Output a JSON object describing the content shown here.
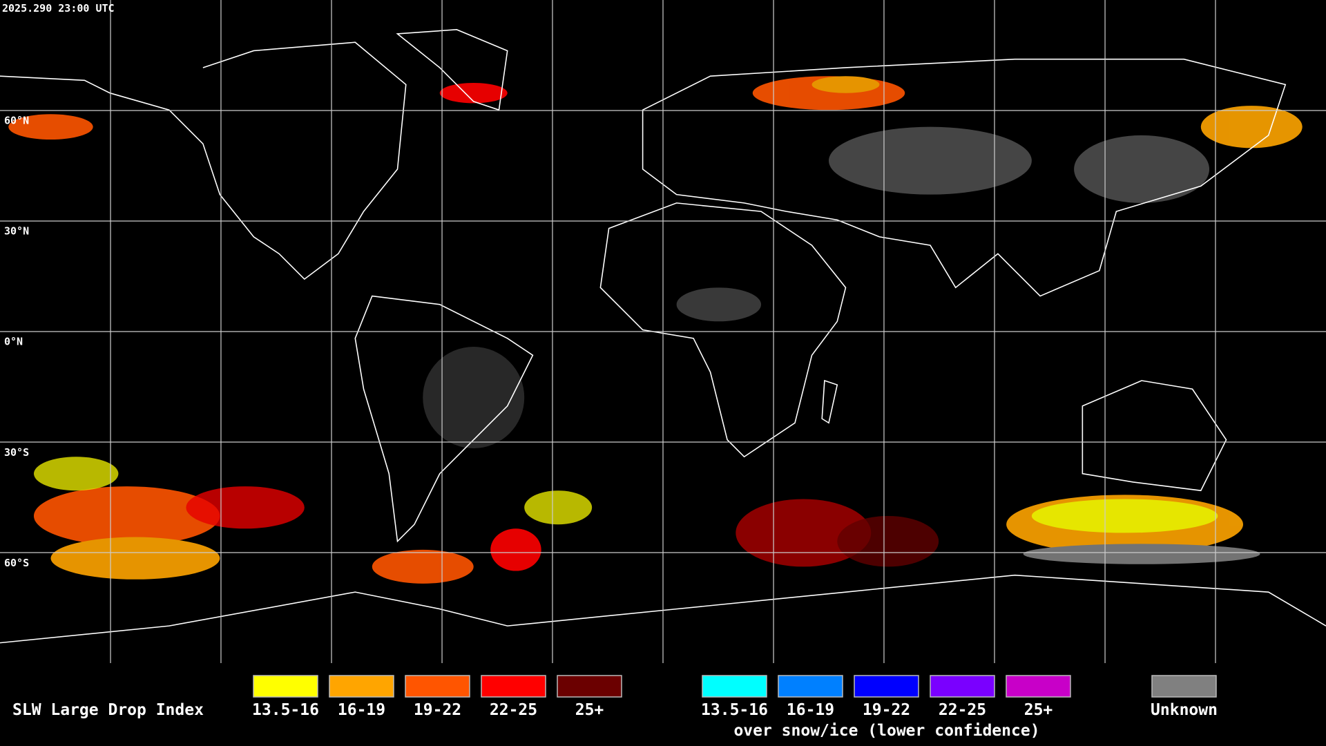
{
  "header": {
    "timestamp": "2025.290 23:00 UTC"
  },
  "map": {
    "latitude_labels": [
      "60°N",
      "30°N",
      "0°N",
      "30°S",
      "60°S"
    ]
  },
  "legend": {
    "title": "SLW Large Drop Index",
    "groups": [
      {
        "items": [
          {
            "label": "13.5-16",
            "color": "#ffff00"
          },
          {
            "label": "16-19",
            "color": "#ffa500"
          },
          {
            "label": "19-22",
            "color": "#ff5500"
          },
          {
            "label": "22-25",
            "color": "#ff0000"
          },
          {
            "label": "25+",
            "color": "#6b0000"
          }
        ]
      },
      {
        "items": [
          {
            "label": "13.5-16",
            "color": "#00ffff"
          },
          {
            "label": "16-19",
            "color": "#0080ff"
          },
          {
            "label": "19-22",
            "color": "#0000ff"
          },
          {
            "label": "22-25",
            "color": "#7a00ff"
          },
          {
            "label": "25+",
            "color": "#c800c8"
          }
        ],
        "caption": "over snow/ice (lower confidence)"
      }
    ],
    "unknown": {
      "label": "Unknown",
      "color": "#808080"
    }
  }
}
